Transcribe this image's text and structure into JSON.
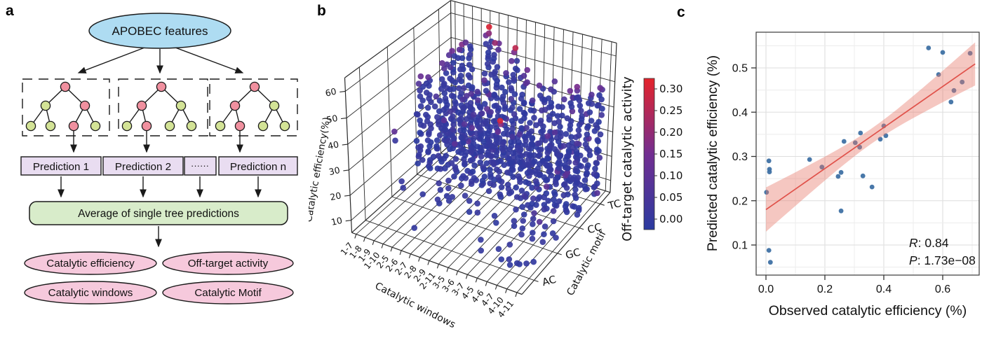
{
  "panels": {
    "labels": [
      "a",
      "b",
      "c"
    ],
    "a": {
      "root_node": "APOBEC features",
      "predictions": [
        "Prediction 1",
        "Prediction 2",
        "······",
        "Prediction n"
      ],
      "average_box": "Average of single tree predictions",
      "outputs": [
        "Catalytic efficiency",
        "Off-target activity",
        "Catalytic windows",
        "Catalytic Motif"
      ],
      "colors": {
        "root_fill": "#aedcf2",
        "prediction_fill": "#e9ddf1",
        "average_fill": "#d8ecca",
        "output_fill": "#f6c9dc",
        "node_pink": "#f0909f",
        "node_green": "#d3e396",
        "outline": "#1a1a1a"
      },
      "trees": [
        {
          "node_colors": [
            "pink",
            "green",
            "pink",
            "green",
            "green",
            "pink",
            "green"
          ],
          "arrow_leaf": 5
        },
        {
          "node_colors": [
            "pink",
            "pink",
            "green",
            "green",
            "pink",
            "green",
            "green"
          ],
          "arrow_leaf": 4
        },
        {
          "node_colors": [
            "pink",
            "pink",
            "green",
            "green",
            "pink",
            "green",
            "green"
          ],
          "arrow_leaf": 4
        }
      ]
    }
  },
  "chart_data": [
    {
      "type": "scatter3d",
      "xlabel": "Catalytic windows",
      "ylabel": "Catalytic motif",
      "zlabel": "Catalytic efficiency(%)",
      "x_categories": [
        "1-7",
        "1-8",
        "1-9",
        "1-10",
        "2-5",
        "2-6",
        "2-7",
        "2-8",
        "2-9",
        "2-11",
        "3-5",
        "3-6",
        "3-7",
        "4-5",
        "4-6",
        "4-7",
        "4-10",
        "4-11"
      ],
      "y_categories": [
        "AC",
        "GC",
        "CC",
        "TC"
      ],
      "z_ticks": [
        10,
        20,
        30,
        40,
        50,
        60
      ],
      "z_range": [
        5,
        65
      ],
      "colorbar": {
        "label": "Off-target catalytic activity",
        "tick_labels": [
          "0.30",
          "0.25",
          "0.20",
          "0.15",
          "0.10",
          "0.05",
          "0.00"
        ],
        "vmin": 0.0,
        "vmax": 0.327,
        "colors_low_to_high": [
          "#2b3ba0",
          "#722e91",
          "#e4232b"
        ]
      },
      "columns_format": [
        "z_min",
        "z_max",
        "n_points",
        "max_offtarget"
      ],
      "columns": {
        "TC": [
          [
            10,
            44,
            26,
            0.13
          ],
          [
            9,
            50,
            30,
            0.15
          ],
          [
            9,
            53,
            32,
            0.18
          ],
          [
            10,
            55,
            28,
            0.12
          ],
          [
            9,
            36,
            20,
            0.08
          ],
          [
            8,
            62,
            40,
            0.31
          ],
          [
            8,
            58,
            36,
            0.22
          ],
          [
            9,
            46,
            26,
            0.1
          ],
          [
            8,
            57,
            34,
            0.27
          ],
          [
            9,
            50,
            30,
            0.15
          ],
          [
            9,
            40,
            22,
            0.08
          ],
          [
            9,
            46,
            26,
            0.12
          ],
          [
            9,
            48,
            26,
            0.1
          ],
          [
            9,
            42,
            22,
            0.08
          ],
          [
            9,
            46,
            26,
            0.15
          ],
          [
            9,
            50,
            28,
            0.17
          ],
          [
            9,
            48,
            26,
            0.1
          ],
          [
            9,
            52,
            30,
            0.14
          ]
        ],
        "CC": [
          [
            10,
            45,
            22,
            0.14
          ],
          [
            9,
            48,
            26,
            0.12
          ],
          [
            10,
            40,
            18,
            0.08
          ],
          [
            12,
            35,
            12,
            0.06
          ],
          [
            9,
            30,
            12,
            0.05
          ],
          [
            8,
            42,
            22,
            0.08
          ],
          [
            8,
            45,
            24,
            0.1
          ],
          [
            9,
            38,
            18,
            0.07
          ],
          [
            9,
            40,
            20,
            0.08
          ],
          [
            8,
            38,
            18,
            0.3
          ],
          [
            9,
            32,
            14,
            0.06
          ],
          [
            9,
            36,
            16,
            0.08
          ],
          [
            9,
            38,
            18,
            0.06
          ],
          [
            9,
            34,
            14,
            0.05
          ],
          [
            9,
            38,
            18,
            0.12
          ],
          [
            9,
            40,
            20,
            0.1
          ],
          [
            9,
            36,
            16,
            0.06
          ],
          [
            9,
            38,
            18,
            0.08
          ]
        ],
        "GC": [
          [
            28,
            32,
            2,
            0.12
          ],
          [
            10,
            14,
            2,
            0.03
          ],
          null,
          [
            10,
            12,
            1,
            0.02
          ],
          null,
          [
            9,
            18,
            4,
            0.04
          ],
          [
            10,
            20,
            5,
            0.04
          ],
          null,
          [
            9,
            16,
            3,
            0.03
          ],
          [
            10,
            14,
            2,
            0.03
          ],
          null,
          [
            9,
            12,
            2,
            0.02
          ],
          null,
          [
            10,
            15,
            3,
            0.03
          ],
          [
            9,
            22,
            6,
            0.05
          ],
          [
            9,
            25,
            8,
            0.05
          ],
          [
            9,
            20,
            5,
            0.04
          ],
          [
            10,
            16,
            3,
            0.03
          ]
        ],
        "AC": [
          null,
          null,
          null,
          null,
          null,
          [
            9,
            10,
            1,
            0.02
          ],
          null,
          null,
          null,
          null,
          null,
          null,
          [
            9,
            12,
            2,
            0.02
          ],
          null,
          [
            9,
            11,
            2,
            0.02
          ],
          [
            8,
            14,
            3,
            0.03
          ],
          [
            9,
            10,
            2,
            0.02
          ],
          [
            10,
            12,
            2,
            0.02
          ]
        ]
      }
    },
    {
      "type": "scatter",
      "xlabel": "Observed catalytic efficiency (%)",
      "ylabel": "Predicted catalytic efficiency (%)",
      "x_ticks": [
        0.0,
        0.2,
        0.4,
        0.6
      ],
      "y_ticks": [
        0.1,
        0.2,
        0.3,
        0.4,
        0.5
      ],
      "xlim": [
        -0.033,
        0.724
      ],
      "ylim": [
        0.034,
        0.579
      ],
      "points": [
        [
          0.01,
          0.29
        ],
        [
          0.012,
          0.271
        ],
        [
          0.012,
          0.265
        ],
        [
          0.002,
          0.219
        ],
        [
          0.01,
          0.088
        ],
        [
          0.015,
          0.061
        ],
        [
          0.148,
          0.293
        ],
        [
          0.19,
          0.276
        ],
        [
          0.245,
          0.255
        ],
        [
          0.255,
          0.264
        ],
        [
          0.255,
          0.177
        ],
        [
          0.265,
          0.334
        ],
        [
          0.303,
          0.331
        ],
        [
          0.321,
          0.353
        ],
        [
          0.318,
          0.321
        ],
        [
          0.329,
          0.256
        ],
        [
          0.36,
          0.231
        ],
        [
          0.388,
          0.339
        ],
        [
          0.4,
          0.369
        ],
        [
          0.407,
          0.347
        ],
        [
          0.552,
          0.545
        ],
        [
          0.586,
          0.485
        ],
        [
          0.6,
          0.535
        ],
        [
          0.628,
          0.423
        ],
        [
          0.638,
          0.449
        ],
        [
          0.666,
          0.468
        ],
        [
          0.693,
          0.533
        ]
      ],
      "regression": {
        "x0": 0.0,
        "y0": 0.18,
        "x1": 0.71,
        "y1": 0.509,
        "band_halfwidth_min": 0.017,
        "band_center_x": 0.36
      },
      "annotation": {
        "r_label": "R",
        "r_value": ": 0.84",
        "p_label": "P",
        "p_value": ": 1.73e−08"
      },
      "colors": {
        "point": "#3f71a4",
        "line": "#e0514a",
        "band": "#e8796b"
      }
    }
  ]
}
